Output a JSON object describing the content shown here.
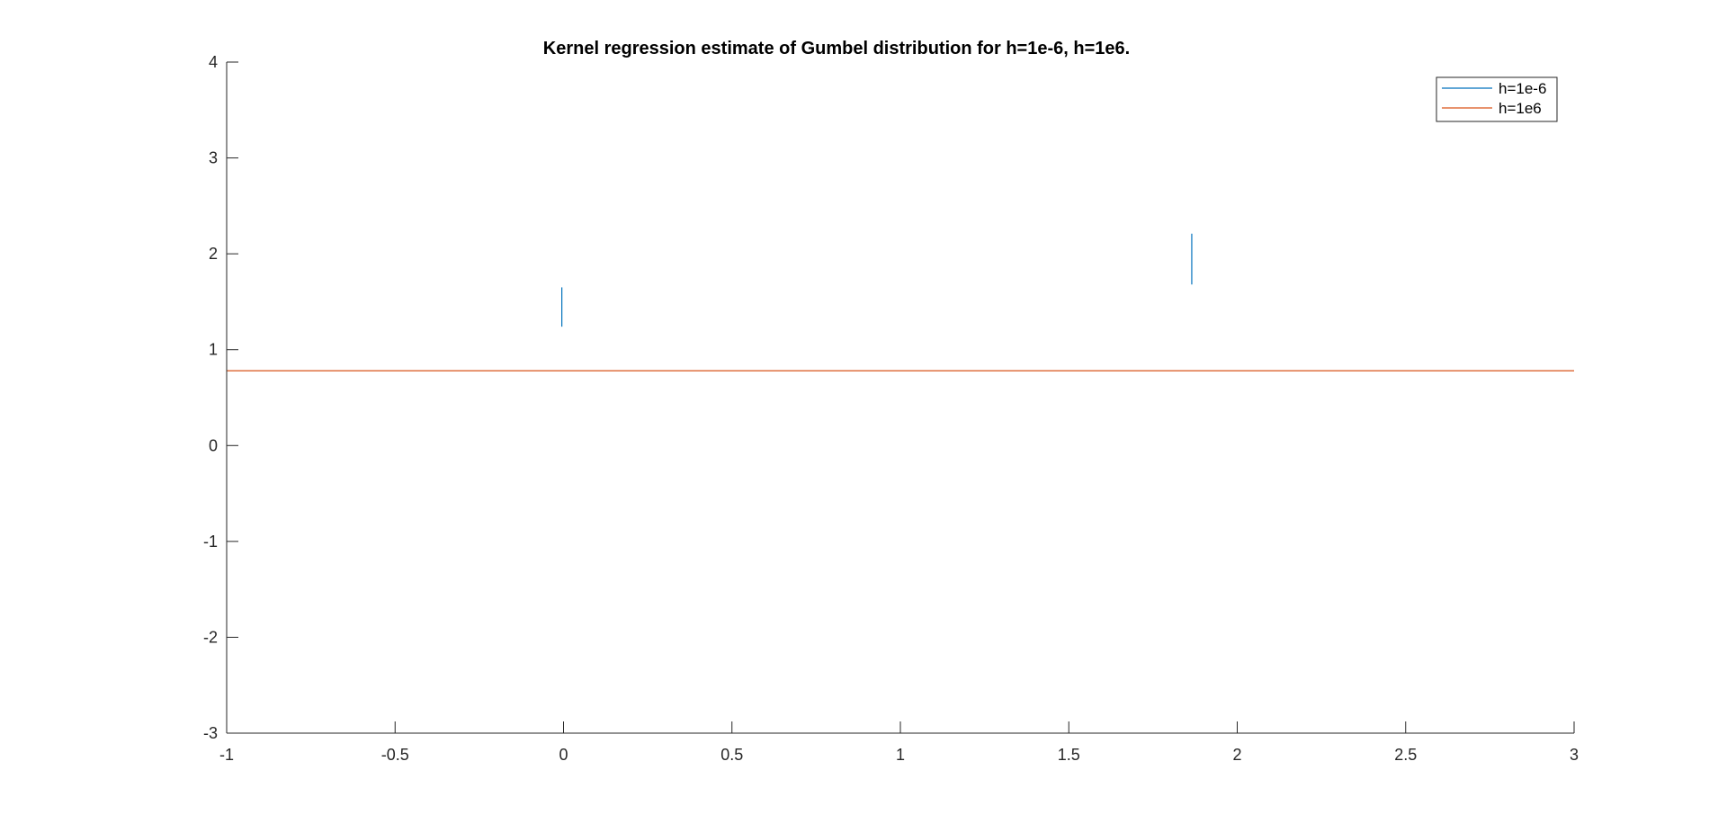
{
  "chart_data": {
    "type": "line",
    "title": "Kernel regression estimate of Gumbel distribution for h=1e-6, h=1e6.",
    "xlabel": "",
    "ylabel": "",
    "xlim": [
      -1,
      3
    ],
    "ylim": [
      -3,
      4
    ],
    "xticks": [
      -1,
      -0.5,
      0,
      0.5,
      1,
      1.5,
      2,
      2.5,
      3
    ],
    "yticks": [
      -3,
      -2,
      -1,
      0,
      1,
      2,
      3,
      4
    ],
    "xtick_labels": [
      "-1",
      "-0.5",
      "0",
      "0.5",
      "1",
      "1.5",
      "2",
      "2.5",
      "3"
    ],
    "ytick_labels": [
      "-3",
      "-2",
      "-1",
      "0",
      "1",
      "2",
      "3",
      "4"
    ],
    "grid": false,
    "legend_position": "top-right",
    "series": [
      {
        "name": "h=1e-6",
        "color": "#0072BD",
        "segments": [
          [
            [
              -0.005,
              1.24
            ],
            [
              -0.005,
              1.65
            ]
          ],
          [
            [
              1.865,
              1.68
            ],
            [
              1.865,
              2.21
            ]
          ]
        ]
      },
      {
        "name": "h=1e6",
        "color": "#D95319",
        "segments": [
          [
            [
              -1,
              0.78
            ],
            [
              3,
              0.78
            ]
          ]
        ]
      }
    ]
  }
}
